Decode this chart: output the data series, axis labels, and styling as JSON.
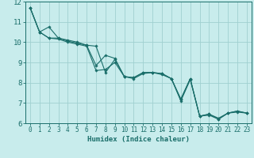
{
  "xlabel": "Humidex (Indice chaleur)",
  "background_color": "#c8ecec",
  "grid_color": "#a0d0d0",
  "line_color": "#1a6e6a",
  "series": [
    {
      "x": [
        0,
        1,
        2,
        3,
        4,
        5,
        6,
        7,
        8,
        9,
        10,
        11,
        12,
        13,
        14,
        15,
        16,
        17,
        18,
        19,
        20,
        21,
        22,
        23
      ],
      "y": [
        11.7,
        10.5,
        10.2,
        10.2,
        10.1,
        10.0,
        9.85,
        9.8,
        8.5,
        9.15,
        8.3,
        8.25,
        8.5,
        8.5,
        8.45,
        8.2,
        7.2,
        8.2,
        6.35,
        6.45,
        6.25,
        6.5,
        6.6,
        6.5
      ]
    },
    {
      "x": [
        0,
        1,
        2,
        3,
        4,
        5,
        6,
        7,
        8,
        9,
        10,
        11,
        12,
        13,
        14,
        15,
        16,
        17,
        18,
        19,
        20,
        21,
        22,
        23
      ],
      "y": [
        11.7,
        10.5,
        10.75,
        10.2,
        10.05,
        9.95,
        9.85,
        8.85,
        9.35,
        9.2,
        8.3,
        8.25,
        8.5,
        8.5,
        8.45,
        8.2,
        7.15,
        8.2,
        6.35,
        6.45,
        6.2,
        6.5,
        6.6,
        6.5
      ]
    },
    {
      "x": [
        0,
        1,
        2,
        3,
        4,
        5,
        6,
        7,
        8,
        9,
        10,
        11,
        12,
        13,
        14,
        15,
        16,
        17,
        18,
        19,
        20,
        21,
        22,
        23
      ],
      "y": [
        11.7,
        10.5,
        10.2,
        10.15,
        10.0,
        9.9,
        9.8,
        8.6,
        8.65,
        9.0,
        8.3,
        8.2,
        8.45,
        8.5,
        8.4,
        8.2,
        7.1,
        8.15,
        6.35,
        6.4,
        6.2,
        6.5,
        6.55,
        6.5
      ]
    }
  ],
  "xlim": [
    -0.5,
    23.5
  ],
  "ylim": [
    6.0,
    12.0
  ],
  "yticks": [
    6,
    7,
    8,
    9,
    10,
    11,
    12
  ],
  "xticks": [
    0,
    1,
    2,
    3,
    4,
    5,
    6,
    7,
    8,
    9,
    10,
    11,
    12,
    13,
    14,
    15,
    16,
    17,
    18,
    19,
    20,
    21,
    22,
    23
  ],
  "figsize": [
    3.2,
    2.0
  ],
  "dpi": 100
}
